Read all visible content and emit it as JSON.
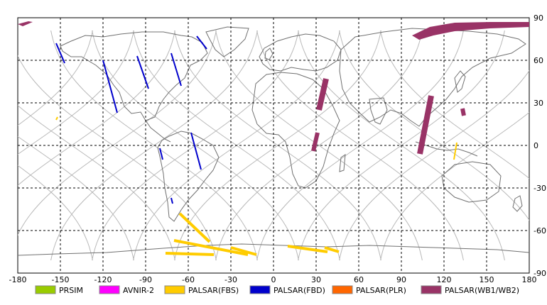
{
  "chart_data": {
    "type": "map",
    "title": "",
    "x_ticks": [
      "-180",
      "-150",
      "-120",
      "-90",
      "-60",
      "-30",
      "0",
      "30",
      "60",
      "90",
      "120",
      "150",
      "180"
    ],
    "y_ticks": [
      "90",
      "60",
      "30",
      "0",
      "-30",
      "-60",
      "-90"
    ],
    "xlim": [
      -180,
      180
    ],
    "ylim": [
      -90,
      90
    ],
    "grid": true,
    "legend_position": "bottom",
    "legend": [
      {
        "label": "PRSIM",
        "color": "#99cc00"
      },
      {
        "label": "AVNIR-2",
        "color": "#ff00ff"
      },
      {
        "label": "PALSAR(FBS)",
        "color": "#ffcc00"
      },
      {
        "label": "PALSAR(FBD)",
        "color": "#0000cc"
      },
      {
        "label": "PALSAR(PLR)",
        "color": "#ff6600"
      },
      {
        "label": "PALSAR(WB1/WB2)",
        "color": "#993366"
      }
    ],
    "observation_swaths": [
      {
        "mode": "PALSAR(WB1/WB2)",
        "lon": [
          37,
          32
        ],
        "lat": [
          47,
          25
        ],
        "width_deg": 4
      },
      {
        "mode": "PALSAR(WB1/WB2)",
        "lon": [
          31,
          28
        ],
        "lat": [
          9,
          -4
        ],
        "width_deg": 3
      },
      {
        "mode": "PALSAR(WB1/WB2)",
        "lon": [
          111,
          103
        ],
        "lat": [
          35,
          -6
        ],
        "width_deg": 4
      },
      {
        "mode": "PALSAR(WB1/WB2)",
        "lon": [
          133,
          134
        ],
        "lat": [
          26,
          21
        ],
        "width_deg": 3
      },
      {
        "mode": "PALSAR(FBD)",
        "lon": [
          -153,
          -147
        ],
        "lat": [
          72,
          58
        ],
        "width_deg": 1
      },
      {
        "mode": "PALSAR(FBD)",
        "lon": [
          -120,
          -110
        ],
        "lat": [
          60,
          23
        ],
        "width_deg": 1
      },
      {
        "mode": "PALSAR(FBD)",
        "lon": [
          -96,
          -88
        ],
        "lat": [
          63,
          40
        ],
        "width_deg": 1
      },
      {
        "mode": "PALSAR(FBD)",
        "lon": [
          -72,
          -65
        ],
        "lat": [
          65,
          42
        ],
        "width_deg": 1
      },
      {
        "mode": "PALSAR(FBD)",
        "lon": [
          -54,
          -47
        ],
        "lat": [
          77,
          68
        ],
        "width_deg": 1
      },
      {
        "mode": "PALSAR(FBD)",
        "lon": [
          -58,
          -51
        ],
        "lat": [
          9,
          -17
        ],
        "width_deg": 1
      },
      {
        "mode": "PALSAR(FBD)",
        "lon": [
          -80,
          -78
        ],
        "lat": [
          -2,
          -10
        ],
        "width_deg": 1
      },
      {
        "mode": "PALSAR(FBD)",
        "lon": [
          -72,
          -71
        ],
        "lat": [
          -37,
          -41
        ],
        "width_deg": 1
      },
      {
        "mode": "PALSAR(FBS)",
        "lon": [
          -66,
          -45
        ],
        "lat": [
          -48,
          -68
        ],
        "width_deg": 2
      },
      {
        "mode": "PALSAR(FBS)",
        "lon": [
          -70,
          -18
        ],
        "lat": [
          -67,
          -77
        ],
        "width_deg": 2
      },
      {
        "mode": "PALSAR(FBS)",
        "lon": [
          -76,
          -42
        ],
        "lat": [
          -76,
          -77
        ],
        "width_deg": 2
      },
      {
        "mode": "PALSAR(FBS)",
        "lon": [
          -30,
          -12
        ],
        "lat": [
          -72,
          -77
        ],
        "width_deg": 2
      },
      {
        "mode": "PALSAR(FBS)",
        "lon": [
          10,
          38
        ],
        "lat": [
          -71,
          -75
        ],
        "width_deg": 2
      },
      {
        "mode": "PALSAR(FBS)",
        "lon": [
          36,
          46
        ],
        "lat": [
          -72,
          -75
        ],
        "width_deg": 2
      },
      {
        "mode": "PALSAR(FBS)",
        "lon": [
          -152,
          -153
        ],
        "lat": [
          20,
          18
        ],
        "width_deg": 1
      },
      {
        "mode": "PALSAR(FBS)",
        "lon": [
          129,
          127
        ],
        "lat": [
          2,
          -10
        ],
        "width_deg": 1
      }
    ]
  }
}
